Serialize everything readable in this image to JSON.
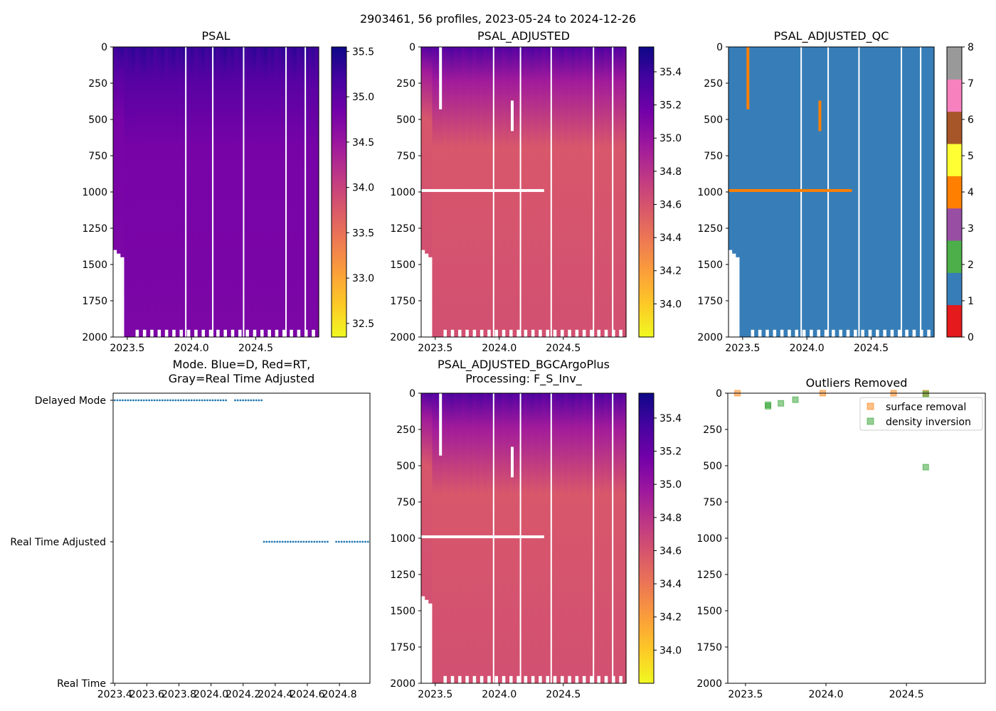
{
  "suptitle": "2903461, 56 profiles, 2023-05-24 to 2024-12-26",
  "colors": {
    "plasma_stops": [
      "#f0f921",
      "#fdca26",
      "#fb9f3a",
      "#ed7953",
      "#d8576b",
      "#bd3786",
      "#9c179e",
      "#7201a8",
      "#46039f",
      "#0d0887"
    ],
    "qc": [
      "#e41a1c",
      "#377eb8",
      "#4daf4a",
      "#984ea3",
      "#ff7f00",
      "#ffff33",
      "#a65628",
      "#f781bf",
      "#999999"
    ],
    "mode_dots": "#1f77b4",
    "surface_removal": "#ff7f0e",
    "density_inversion": "#2ca02c"
  },
  "chart_data": [
    {
      "id": "psal",
      "type": "heatmap",
      "title": "PSAL",
      "x_ticks": [
        "2023.5",
        "2024.0",
        "2024.5"
      ],
      "x_tick_values": [
        2023.5,
        2024.0,
        2024.5
      ],
      "xlim": [
        2023.39,
        2024.99
      ],
      "y_ticks": [
        "0",
        "250",
        "500",
        "750",
        "1000",
        "1250",
        "1500",
        "1750",
        "2000"
      ],
      "ylim": [
        2000,
        0
      ],
      "colorbar": {
        "range": [
          32.35,
          35.55
        ],
        "ticks": [
          "32.5",
          "33.0",
          "33.5",
          "34.0",
          "34.5",
          "35.0",
          "35.5"
        ],
        "tick_values": [
          32.5,
          33.0,
          33.5,
          34.0,
          34.5,
          35.0,
          35.5
        ]
      },
      "surface_value": 35.3,
      "deep_value": 34.75,
      "data_gaps": [
        2023.95,
        2024.16,
        2024.4,
        2024.73,
        2024.88
      ],
      "qc4_band_depth": null
    },
    {
      "id": "psal-adjusted",
      "type": "heatmap",
      "title": "PSAL_ADJUSTED",
      "x_ticks": [
        "2023.5",
        "2024.0",
        "2024.5"
      ],
      "x_tick_values": [
        2023.5,
        2024.0,
        2024.5
      ],
      "xlim": [
        2023.39,
        2024.99
      ],
      "y_ticks": [
        "0",
        "250",
        "500",
        "750",
        "1000",
        "1250",
        "1500",
        "1750",
        "2000"
      ],
      "ylim": [
        2000,
        0
      ],
      "colorbar": {
        "range": [
          33.8,
          35.55
        ],
        "ticks": [
          "34.0",
          "34.2",
          "34.4",
          "34.6",
          "34.8",
          "35.0",
          "35.2",
          "35.4"
        ],
        "tick_values": [
          34.0,
          34.2,
          34.4,
          34.6,
          34.8,
          35.0,
          35.2,
          35.4
        ]
      },
      "surface_value": 35.3,
      "deep_value": 34.62,
      "data_gaps": [
        2023.95,
        2024.16,
        2024.4,
        2024.73,
        2024.88
      ],
      "band_removed_depth": 990
    },
    {
      "id": "psal-adjusted-qc",
      "type": "heatmap",
      "title": "PSAL_ADJUSTED_QC",
      "x_ticks": [
        "2023.5",
        "2024.0",
        "2024.5"
      ],
      "x_tick_values": [
        2023.5,
        2024.0,
        2024.5
      ],
      "xlim": [
        2023.39,
        2024.99
      ],
      "y_ticks": [
        "0",
        "250",
        "500",
        "750",
        "1000",
        "1250",
        "1500",
        "1750",
        "2000"
      ],
      "ylim": [
        2000,
        0
      ],
      "colorbar": {
        "range": [
          0,
          8
        ],
        "ticks": [
          "0",
          "1",
          "2",
          "3",
          "4",
          "5",
          "6",
          "7",
          "8"
        ],
        "tick_values": [
          0,
          1,
          2,
          3,
          4,
          5,
          6,
          7,
          8
        ]
      },
      "dominant_flag": 1,
      "flag4_band_depth": 990,
      "data_gaps": [
        2023.95,
        2024.16,
        2024.4,
        2024.73,
        2024.88
      ]
    },
    {
      "id": "mode",
      "type": "scatter",
      "title_line1": "Mode. Blue=D, Red=RT,",
      "title_line2": "Gray=Real Time Adjusted",
      "x_ticks": [
        "2023.4",
        "2023.6",
        "2023.8",
        "2024.0",
        "2024.2",
        "2024.4",
        "2024.6",
        "2024.8"
      ],
      "x_tick_values": [
        2023.4,
        2023.6,
        2023.8,
        2024.0,
        2024.2,
        2024.4,
        2024.6,
        2024.8
      ],
      "xlim": [
        2023.39,
        2024.99
      ],
      "y_categories": [
        "Real Time",
        "Real Time Adjusted",
        "Delayed Mode"
      ],
      "series": [
        {
          "name": "Delayed Mode",
          "y_index": 2,
          "x_segments": [
            [
              2023.4,
              2024.1
            ],
            [
              2024.15,
              2024.32
            ]
          ]
        },
        {
          "name": "Real Time Adjusted",
          "y_index": 1,
          "x_segments": [
            [
              2024.33,
              2024.74
            ],
            [
              2024.78,
              2024.99
            ]
          ]
        }
      ]
    },
    {
      "id": "psal-adjusted-bgc",
      "type": "heatmap",
      "title_line1": "PSAL_ADJUSTED_BGCArgoPlus",
      "title_line2": "Processing: F_S_Inv_",
      "x_ticks": [
        "2023.5",
        "2024.0",
        "2024.5"
      ],
      "x_tick_values": [
        2023.5,
        2024.0,
        2024.5
      ],
      "xlim": [
        2023.39,
        2024.99
      ],
      "y_ticks": [
        "0",
        "250",
        "500",
        "750",
        "1000",
        "1250",
        "1500",
        "1750",
        "2000"
      ],
      "ylim": [
        2000,
        0
      ],
      "colorbar": {
        "range": [
          33.8,
          35.55
        ],
        "ticks": [
          "34.0",
          "34.2",
          "34.4",
          "34.6",
          "34.8",
          "35.0",
          "35.2",
          "35.4"
        ],
        "tick_values": [
          34.0,
          34.2,
          34.4,
          34.6,
          34.8,
          35.0,
          35.2,
          35.4
        ]
      },
      "surface_value": 35.3,
      "deep_value": 34.62,
      "data_gaps": [
        2023.95,
        2024.16,
        2024.4,
        2024.73,
        2024.88
      ],
      "band_removed_depth": 990
    },
    {
      "id": "outliers",
      "type": "scatter",
      "title": "Outliers Removed",
      "x_ticks": [
        "2023.5",
        "2024.0",
        "2024.5"
      ],
      "x_tick_values": [
        2023.5,
        2024.0,
        2024.5
      ],
      "xlim": [
        2023.39,
        2024.99
      ],
      "y_ticks": [
        "0",
        "250",
        "500",
        "750",
        "1000",
        "1250",
        "1500",
        "1750",
        "2000"
      ],
      "ylim": [
        2000,
        0
      ],
      "legend_position": "top-right",
      "series": [
        {
          "name": "surface removal",
          "points": [
            [
              2023.45,
              0
            ],
            [
              2023.98,
              0
            ],
            [
              2024.42,
              0
            ],
            [
              2024.62,
              0
            ]
          ]
        },
        {
          "name": "density inversion",
          "points": [
            [
              2023.64,
              80
            ],
            [
              2023.64,
              90
            ],
            [
              2023.72,
              70
            ],
            [
              2023.81,
              45
            ],
            [
              2024.62,
              510
            ],
            [
              2024.62,
              5
            ]
          ]
        }
      ]
    }
  ]
}
